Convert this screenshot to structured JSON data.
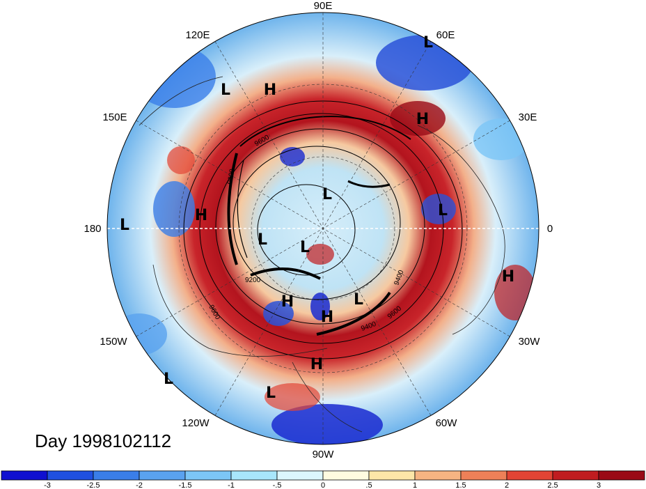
{
  "longitude_labels": {
    "lon_90e": "90E",
    "lon_60e": "60E",
    "lon_30e": "30E",
    "lon_0": "0",
    "lon_30w": "30W",
    "lon_60w": "60W",
    "lon_90w": "90W",
    "lon_120w": "120W",
    "lon_150w": "150W",
    "lon_180": "180",
    "lon_150e": "150E",
    "lon_120e": "120E"
  },
  "pressure_centers": [
    {
      "type": "L"
    },
    {
      "type": "H"
    },
    {
      "type": "L"
    },
    {
      "type": "H"
    },
    {
      "type": "H"
    },
    {
      "type": "L"
    },
    {
      "type": "L"
    },
    {
      "type": "L"
    },
    {
      "type": "L"
    },
    {
      "type": "L"
    },
    {
      "type": "H"
    },
    {
      "type": "H"
    },
    {
      "type": "L"
    },
    {
      "type": "H"
    },
    {
      "type": "H"
    },
    {
      "type": "L"
    },
    {
      "type": "L"
    }
  ],
  "contour_labels": [
    "9600",
    "9600",
    "9200",
    "9600",
    "9600",
    "9400",
    "9400"
  ],
  "date_label": "Day 1998102112",
  "colorbar": {
    "ticks": [
      "-3",
      "-2.5",
      "-2",
      "-1.5",
      "-1",
      "-.5",
      "0",
      ".5",
      "1",
      "1.5",
      "2",
      "2.5",
      "3"
    ],
    "colors": [
      "#1010d0",
      "#2050e0",
      "#3a7ee8",
      "#5aa2ef",
      "#7cc6f6",
      "#a8e6fb",
      "#dcf6fd",
      "#fffbe0",
      "#fde6a8",
      "#f6b482",
      "#ee8058",
      "#e24434",
      "#c01c20",
      "#9a0a16"
    ]
  }
}
